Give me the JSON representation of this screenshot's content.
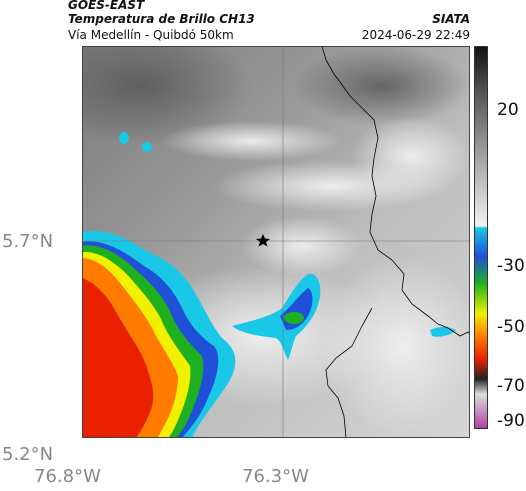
{
  "header": {
    "satellite": "GOES-EAST",
    "product": "Temperatura de Brillo CH13",
    "source": "SIATA",
    "region": "Vía Medellín - Quibdó 50km",
    "datetime": "2024-06-29 22:49"
  },
  "map": {
    "lat_ticks": [
      "5.7°N",
      "5.2°N"
    ],
    "lon_ticks": [
      "76.8°W",
      "76.3°W"
    ],
    "marker": "star-marker"
  },
  "colorbar": {
    "ticks": [
      "20",
      "-30",
      "-50",
      "-70",
      "-90"
    ],
    "colors": {
      "warm_top": "#111111",
      "warm_bottom": "#f2f2f2",
      "cyan": "#19c8e6",
      "blue": "#2050d8",
      "green": "#1fb01f",
      "yellow": "#f0f000",
      "orange": "#ff7a00",
      "red": "#e82000",
      "purple": "#b040a0"
    }
  }
}
